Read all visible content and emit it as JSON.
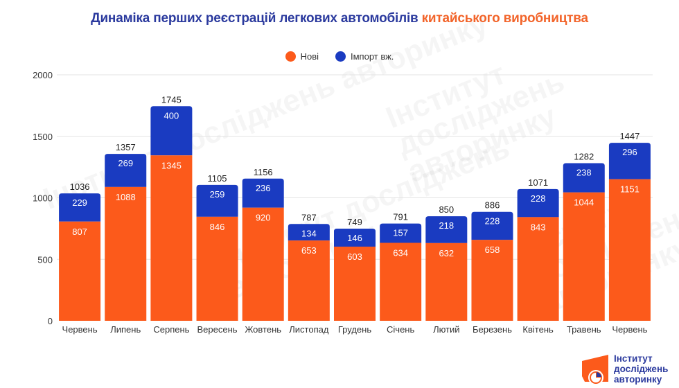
{
  "title": {
    "main": "Динаміка перших реєстрацій легкових автомобілів",
    "accent": "китайського виробництва"
  },
  "colors": {
    "title": "#2b3a9e",
    "accent": "#f2642a",
    "new": "#fc5a1b",
    "import": "#1a3bc1",
    "grid": "#e3e3e3"
  },
  "watermark_text": "Інститут досліджень авторинку",
  "logo": {
    "line1": "Інститут",
    "line2": "досліджень",
    "line3": "авторинку"
  },
  "chart_data": {
    "type": "bar",
    "stacked": true,
    "title": "Динаміка перших реєстрацій легкових автомобілів китайського виробництва",
    "xlabel": "",
    "ylabel": "",
    "ylim": [
      0,
      2000
    ],
    "yticks": [
      0,
      500,
      1000,
      1500,
      2000
    ],
    "grid": true,
    "legend_position": "top-center",
    "categories": [
      "Червень",
      "Липень",
      "Серпень",
      "Вересень",
      "Жовтень",
      "Листопад",
      "Грудень",
      "Січень",
      "Лютий",
      "Березень",
      "Квітень",
      "Травень",
      "Червень"
    ],
    "series": [
      {
        "name": "Нові",
        "color": "#fc5a1b",
        "values": [
          807,
          1088,
          1345,
          846,
          920,
          653,
          603,
          634,
          632,
          658,
          843,
          1044,
          1151
        ]
      },
      {
        "name": "Імпорт вж.",
        "color": "#1a3bc1",
        "values": [
          229,
          269,
          400,
          259,
          236,
          134,
          146,
          157,
          218,
          228,
          228,
          238,
          296
        ]
      }
    ],
    "totals": [
      1036,
      1357,
      1745,
      1105,
      1156,
      787,
      749,
      791,
      850,
      886,
      1071,
      1282,
      1447
    ]
  }
}
